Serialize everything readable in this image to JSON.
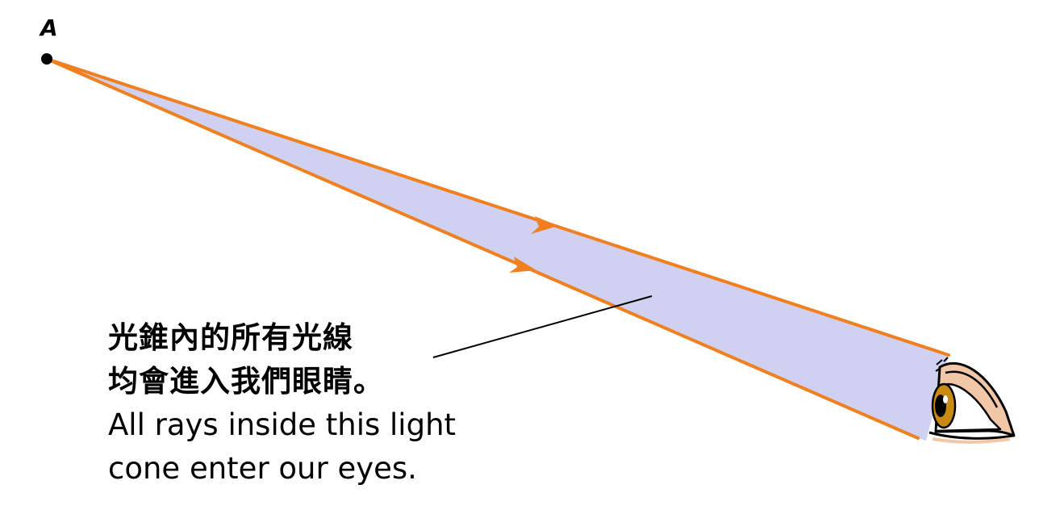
{
  "diagram": {
    "point_label": "A",
    "caption": {
      "line1": "光錐內的所有光線",
      "line2": "均會進入我們眼睛。",
      "line3": "All rays inside this light",
      "line4": "cone enter our eyes."
    },
    "colors": {
      "ray": "#f07f1f",
      "cone_fill": "#d0d0f0",
      "pointer_line": "#000000",
      "point": "#000000",
      "eye_skin": "#f2c7a8",
      "eye_iris": "#c98a12"
    },
    "icons": {
      "eye": "eye-icon"
    }
  }
}
